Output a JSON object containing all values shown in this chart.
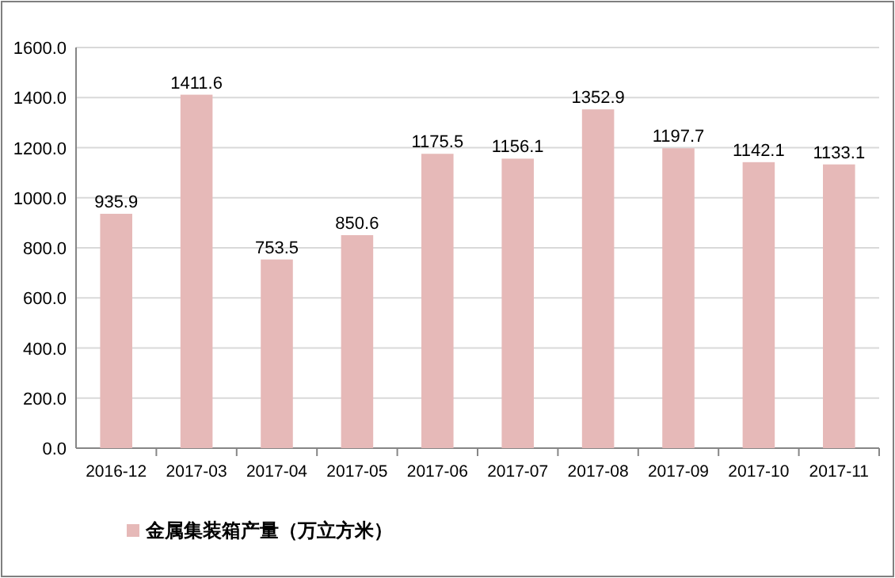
{
  "chart_data": {
    "type": "bar",
    "categories": [
      "2016-12",
      "2017-03",
      "2017-04",
      "2017-05",
      "2017-06",
      "2017-07",
      "2017-08",
      "2017-09",
      "2017-10",
      "2017-11"
    ],
    "series": [
      {
        "name": "金属集装箱产量（万立方米）",
        "color": "#e6b9b8",
        "values": [
          935.9,
          1411.6,
          753.5,
          850.6,
          1175.5,
          1156.1,
          1352.9,
          1197.7,
          1142.1,
          1133.1
        ]
      }
    ],
    "ylim": [
      0,
      1600
    ],
    "yticks": [
      {
        "value": 0,
        "label": "0.0"
      },
      {
        "value": 200,
        "label": "200.0"
      },
      {
        "value": 400,
        "label": "400.0"
      },
      {
        "value": 600,
        "label": "600.0"
      },
      {
        "value": 800,
        "label": "800.0"
      },
      {
        "value": 1000,
        "label": "1000.0"
      },
      {
        "value": 1200,
        "label": "1200.0"
      },
      {
        "value": 1400,
        "label": "1400.0"
      },
      {
        "value": 1600,
        "label": "1600.0"
      }
    ],
    "grid": "y",
    "legend": "bottom left",
    "data_labels": true
  }
}
